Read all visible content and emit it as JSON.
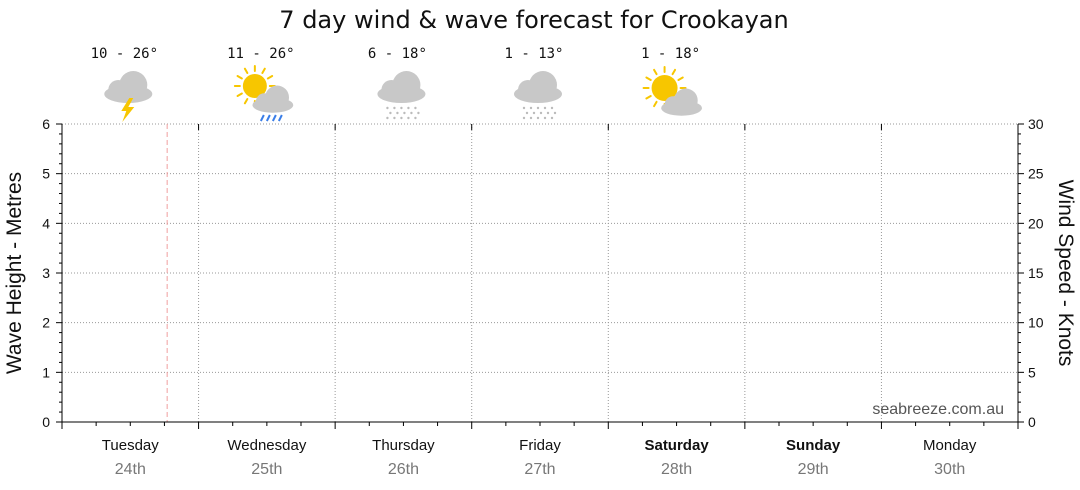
{
  "chart_data": {
    "type": "line",
    "title": "7 day wind & wave forecast for Crookayan",
    "ylabel_left": "Wave Height - Metres",
    "ylabel_right": "Wind Speed - Knots",
    "ylim_left": [
      0,
      6
    ],
    "ylim_right": [
      0,
      30
    ],
    "yticks_left": [
      "0",
      "1",
      "2",
      "3",
      "4",
      "5",
      "6"
    ],
    "yticks_right": [
      "0",
      "5",
      "10",
      "15",
      "20",
      "25",
      "30"
    ],
    "grid": true,
    "days": [
      {
        "day": "Tuesday",
        "date": "24th",
        "bold": false
      },
      {
        "day": "Wednesday",
        "date": "25th",
        "bold": false
      },
      {
        "day": "Thursday",
        "date": "26th",
        "bold": false
      },
      {
        "day": "Friday",
        "date": "27th",
        "bold": false
      },
      {
        "day": "Saturday",
        "date": "28th",
        "bold": true
      },
      {
        "day": "Sunday",
        "date": "29th",
        "bold": true
      },
      {
        "day": "Monday",
        "date": "30th",
        "bold": false
      }
    ],
    "forecast": [
      {
        "temp": "10 - 26°",
        "icon": "thunderstorm-cloud-icon"
      },
      {
        "temp": "11 - 26°",
        "icon": "sun-showers-icon"
      },
      {
        "temp": "6 - 18°",
        "icon": "cloud-drizzle-icon"
      },
      {
        "temp": "1 - 13°",
        "icon": "cloud-drizzle-icon"
      },
      {
        "temp": "1 - 18°",
        "icon": "partly-cloudy-icon"
      }
    ],
    "series": [],
    "now_marker_day_fraction": 0.77,
    "watermark": "seabreeze.com.au"
  },
  "colors": {
    "grid": "#999999",
    "now_line": "#f0a0a0",
    "cloud": "#c8c8c8",
    "sun": "#f7c600",
    "bolt": "#f7c600",
    "rain": "#3a7ee8"
  }
}
